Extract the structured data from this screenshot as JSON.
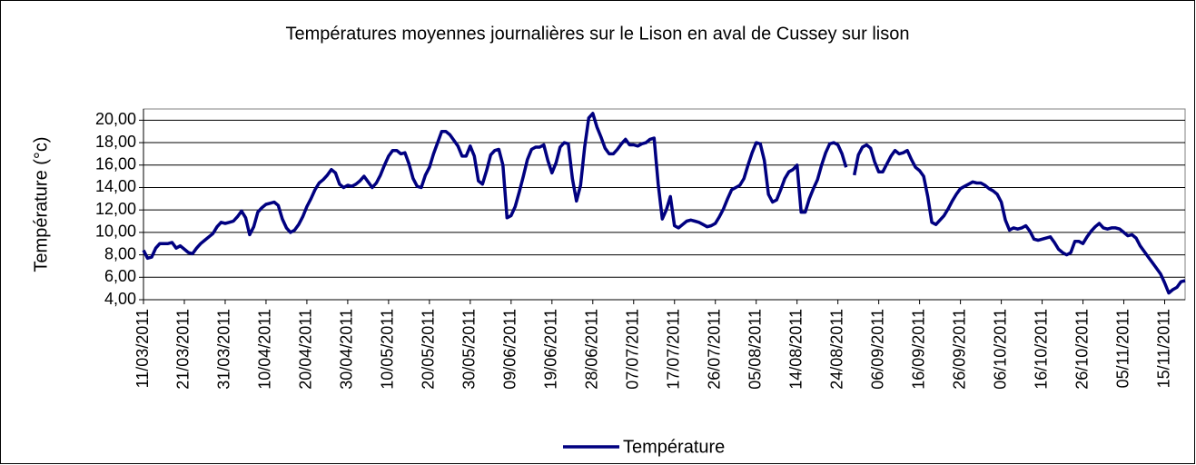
{
  "chart_data": {
    "type": "line",
    "title": "Températures moyennes journalières sur le Lison en aval de Cussey sur lison",
    "y_label": "Température (°c)",
    "categories": [
      "11/03/2011",
      null,
      null,
      null,
      null,
      null,
      null,
      null,
      null,
      null,
      "21/03/2011",
      null,
      null,
      null,
      null,
      null,
      null,
      null,
      null,
      null,
      "31/03/2011",
      null,
      null,
      null,
      null,
      null,
      null,
      null,
      null,
      null,
      "10/04/2011",
      null,
      null,
      null,
      null,
      null,
      null,
      null,
      null,
      null,
      "20/04/2011",
      null,
      null,
      null,
      null,
      null,
      null,
      null,
      null,
      null,
      "30/04/2011",
      null,
      null,
      null,
      null,
      null,
      null,
      null,
      null,
      null,
      "10/05/2011",
      null,
      null,
      null,
      null,
      null,
      null,
      null,
      null,
      null,
      "20/05/2011",
      null,
      null,
      null,
      null,
      null,
      null,
      null,
      null,
      null,
      "30/05/2011",
      null,
      null,
      null,
      null,
      null,
      null,
      null,
      null,
      null,
      "09/06/2011",
      null,
      null,
      null,
      null,
      null,
      null,
      null,
      null,
      null,
      "19/06/2011",
      null,
      null,
      null,
      null,
      null,
      null,
      null,
      null,
      null,
      "28/06/2011",
      null,
      null,
      null,
      null,
      null,
      null,
      null,
      null,
      null,
      "07/07/2011",
      null,
      null,
      null,
      null,
      null,
      null,
      null,
      null,
      null,
      "17/07/2011",
      null,
      null,
      null,
      null,
      null,
      null,
      null,
      null,
      null,
      "26/07/2011",
      null,
      null,
      null,
      null,
      null,
      null,
      null,
      null,
      null,
      "05/08/2011",
      null,
      null,
      null,
      null,
      null,
      null,
      null,
      null,
      null,
      "14/08/2011",
      null,
      null,
      null,
      null,
      null,
      null,
      null,
      null,
      null,
      "24/08/2011",
      null,
      null,
      null,
      null,
      null,
      null,
      null,
      null,
      null,
      "06/09/2011",
      null,
      null,
      null,
      null,
      null,
      null,
      null,
      null,
      null,
      "16/09/2011",
      null,
      null,
      null,
      null,
      null,
      null,
      null,
      null,
      null,
      "26/09/2011",
      null,
      null,
      null,
      null,
      null,
      null,
      null,
      null,
      null,
      "06/10/2011",
      null,
      null,
      null,
      null,
      null,
      null,
      null,
      null,
      null,
      "16/10/2011",
      null,
      null,
      null,
      null,
      null,
      null,
      null,
      null,
      null,
      "26/10/2011",
      null,
      null,
      null,
      null,
      null,
      null,
      null,
      null,
      null,
      "05/11/2011",
      null,
      null,
      null,
      null,
      null,
      null,
      null,
      null,
      null,
      "15/11/2011",
      null,
      null,
      null,
      null,
      null
    ],
    "series": [
      {
        "name": "Température",
        "color": "#000080",
        "values": [
          8.4,
          7.7,
          7.8,
          8.6,
          9.0,
          9.0,
          9.0,
          9.1,
          8.6,
          8.8,
          8.5,
          8.2,
          8.1,
          8.6,
          9.0,
          9.3,
          9.6,
          9.9,
          10.5,
          10.9,
          10.8,
          10.9,
          11.0,
          11.4,
          11.9,
          11.3,
          9.8,
          10.5,
          11.8,
          12.2,
          12.5,
          12.6,
          12.7,
          12.4,
          11.2,
          10.4,
          10.0,
          10.2,
          10.7,
          11.4,
          12.3,
          13.0,
          13.8,
          14.4,
          14.7,
          15.1,
          15.6,
          15.3,
          14.3,
          14.0,
          14.2,
          14.1,
          14.3,
          14.6,
          15.0,
          14.5,
          14.0,
          14.4,
          15.1,
          16.0,
          16.8,
          17.3,
          17.3,
          17.0,
          17.1,
          16.1,
          14.8,
          14.1,
          14.0,
          15.1,
          15.8,
          17.0,
          18.0,
          19.0,
          19.0,
          18.7,
          18.2,
          17.7,
          16.8,
          16.8,
          17.7,
          16.8,
          14.6,
          14.3,
          15.5,
          16.9,
          17.3,
          17.4,
          16.0,
          11.3,
          11.5,
          12.3,
          13.6,
          15.0,
          16.5,
          17.4,
          17.6,
          17.6,
          17.8,
          16.4,
          15.3,
          16.2,
          17.6,
          18.0,
          17.9,
          14.8,
          12.8,
          14.2,
          17.6,
          20.2,
          20.6,
          19.4,
          18.5,
          17.5,
          17.0,
          17.0,
          17.4,
          17.9,
          18.3,
          17.8,
          17.8,
          17.7,
          17.9,
          18.0,
          18.3,
          18.4,
          14.3,
          11.2,
          12.0,
          13.2,
          10.6,
          10.4,
          10.7,
          11.0,
          11.1,
          11.0,
          10.9,
          10.7,
          10.5,
          10.6,
          10.8,
          11.4,
          12.1,
          13.0,
          13.8,
          14.0,
          14.2,
          14.8,
          16.0,
          17.1,
          18.0,
          17.9,
          16.4,
          13.4,
          12.7,
          12.9,
          13.8,
          14.8,
          15.4,
          15.6,
          16.0,
          11.8,
          11.8,
          13.0,
          13.9,
          14.7,
          16.0,
          17.1,
          17.9,
          18.0,
          17.8,
          17.0,
          15.8,
          null,
          15.1,
          16.9,
          17.6,
          17.8,
          17.5,
          16.3,
          15.4,
          15.4,
          16.1,
          16.8,
          17.3,
          17.0,
          17.1,
          17.3,
          16.5,
          15.8,
          15.5,
          15.0,
          13.2,
          10.9,
          10.7,
          11.1,
          11.5,
          12.1,
          12.8,
          13.4,
          13.9,
          14.1,
          14.3,
          14.5,
          14.4,
          14.4,
          14.2,
          13.9,
          13.7,
          13.4,
          12.7,
          11.1,
          10.2,
          10.4,
          10.3,
          10.4,
          10.6,
          10.1,
          9.4,
          9.3,
          9.4,
          9.5,
          9.6,
          9.1,
          8.5,
          8.2,
          8.0,
          8.2,
          9.2,
          9.2,
          9.0,
          9.6,
          10.1,
          10.5,
          10.8,
          10.4,
          10.3,
          10.4,
          10.4,
          10.3,
          10.0,
          9.7,
          9.8,
          9.5,
          8.8,
          8.3,
          7.8,
          7.3,
          6.8,
          6.3,
          5.5,
          4.6,
          4.9,
          5.1,
          5.6,
          5.7
        ]
      }
    ],
    "ylim": [
      4,
      21
    ],
    "yticks": [
      {
        "value": 4,
        "label": "4,00"
      },
      {
        "value": 6,
        "label": "6,00"
      },
      {
        "value": 8,
        "label": "8,00"
      },
      {
        "value": 10,
        "label": "10,00"
      },
      {
        "value": 12,
        "label": "12,00"
      },
      {
        "value": 14,
        "label": "14,00"
      },
      {
        "value": 16,
        "label": "16,00"
      },
      {
        "value": 18,
        "label": "18,00"
      },
      {
        "value": 20,
        "label": "20,00"
      }
    ],
    "grid": true,
    "legend": "bottom"
  }
}
